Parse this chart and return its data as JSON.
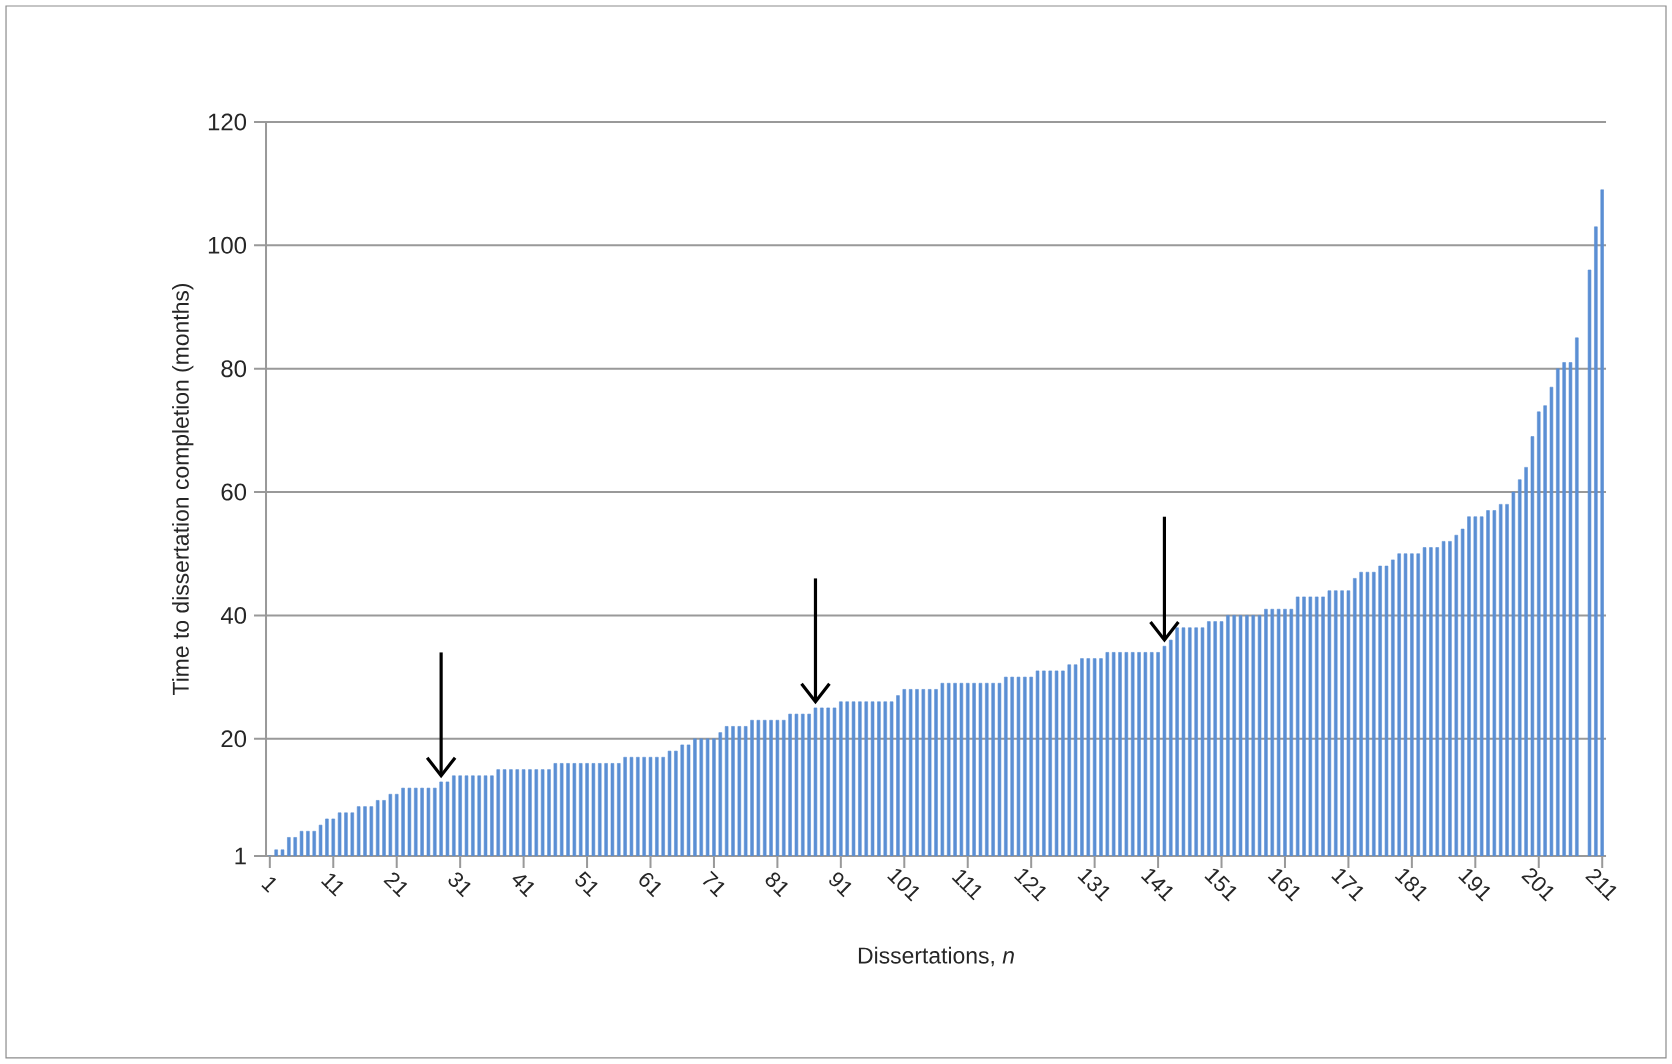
{
  "chart_data": {
    "type": "bar",
    "xlabel": "Dissertations, *n*",
    "ylabel": "Time to dissertation completion (months)",
    "categories": [
      "1",
      null,
      null,
      null,
      null,
      null,
      null,
      null,
      null,
      null,
      "11",
      null,
      null,
      null,
      null,
      null,
      null,
      null,
      null,
      null,
      "21",
      null,
      null,
      null,
      null,
      null,
      null,
      null,
      null,
      null,
      "31",
      null,
      null,
      null,
      null,
      null,
      null,
      null,
      null,
      null,
      "41",
      null,
      null,
      null,
      null,
      null,
      null,
      null,
      null,
      null,
      "51",
      null,
      null,
      null,
      null,
      null,
      null,
      null,
      null,
      null,
      "61",
      null,
      null,
      null,
      null,
      null,
      null,
      null,
      null,
      null,
      "71",
      null,
      null,
      null,
      null,
      null,
      null,
      null,
      null,
      null,
      "81",
      null,
      null,
      null,
      null,
      null,
      null,
      null,
      null,
      null,
      "91",
      null,
      null,
      null,
      null,
      null,
      null,
      null,
      null,
      null,
      "101",
      null,
      null,
      null,
      null,
      null,
      null,
      null,
      null,
      null,
      "111",
      null,
      null,
      null,
      null,
      null,
      null,
      null,
      null,
      null,
      "121",
      null,
      null,
      null,
      null,
      null,
      null,
      null,
      null,
      null,
      "131",
      null,
      null,
      null,
      null,
      null,
      null,
      null,
      null,
      null,
      "141",
      null,
      null,
      null,
      null,
      null,
      null,
      null,
      null,
      null,
      "151",
      null,
      null,
      null,
      null,
      null,
      null,
      null,
      null,
      null,
      "161",
      null,
      null,
      null,
      null,
      null,
      null,
      null,
      null,
      null,
      "171",
      null,
      null,
      null,
      null,
      null,
      null,
      null,
      null,
      null,
      "181",
      null,
      null,
      null,
      null,
      null,
      null,
      null,
      null,
      null,
      "191",
      null,
      null,
      null,
      null,
      null,
      null,
      null,
      null,
      null,
      "201",
      null,
      null,
      null,
      null,
      null,
      null,
      null,
      null,
      null,
      "211"
    ],
    "values": [
      1,
      2,
      2,
      4,
      4,
      5,
      5,
      5,
      6,
      7,
      7,
      8,
      8,
      8,
      9,
      9,
      9,
      10,
      10,
      11,
      11,
      12,
      12,
      12,
      12,
      12,
      12,
      13,
      13,
      14,
      14,
      14,
      14,
      14,
      14,
      14,
      15,
      15,
      15,
      15,
      15,
      15,
      15,
      15,
      15,
      16,
      16,
      16,
      16,
      16,
      16,
      16,
      16,
      16,
      16,
      16,
      17,
      17,
      17,
      17,
      17,
      17,
      17,
      18,
      18,
      19,
      19,
      20,
      20,
      20,
      20,
      21,
      22,
      22,
      22,
      22,
      23,
      23,
      23,
      23,
      23,
      23,
      24,
      24,
      24,
      24,
      25,
      25,
      25,
      25,
      26,
      26,
      26,
      26,
      26,
      26,
      26,
      26,
      26,
      27,
      28,
      28,
      28,
      28,
      28,
      28,
      29,
      29,
      29,
      29,
      29,
      29,
      29,
      29,
      29,
      29,
      30,
      30,
      30,
      30,
      30,
      31,
      31,
      31,
      31,
      31,
      32,
      32,
      33,
      33,
      33,
      33,
      34,
      34,
      34,
      34,
      34,
      34,
      34,
      34,
      34,
      35,
      36,
      38,
      38,
      38,
      38,
      38,
      39,
      39,
      39,
      40,
      40,
      40,
      40,
      40,
      40,
      41,
      41,
      41,
      41,
      41,
      43,
      43,
      43,
      43,
      43,
      44,
      44,
      44,
      44,
      46,
      47,
      47,
      47,
      48,
      48,
      49,
      50,
      50,
      50,
      50,
      51,
      51,
      51,
      52,
      52,
      53,
      54,
      56,
      56,
      56,
      57,
      57,
      58,
      58,
      60,
      62,
      64,
      69,
      73,
      74,
      77,
      80,
      81,
      81,
      85,
      null,
      96,
      103,
      109
    ],
    "color": "#5b8fd4",
    "ylim": [
      1,
      120
    ],
    "yticks": [
      1,
      20,
      40,
      60,
      80,
      100,
      120
    ],
    "grid": "y"
  }
}
